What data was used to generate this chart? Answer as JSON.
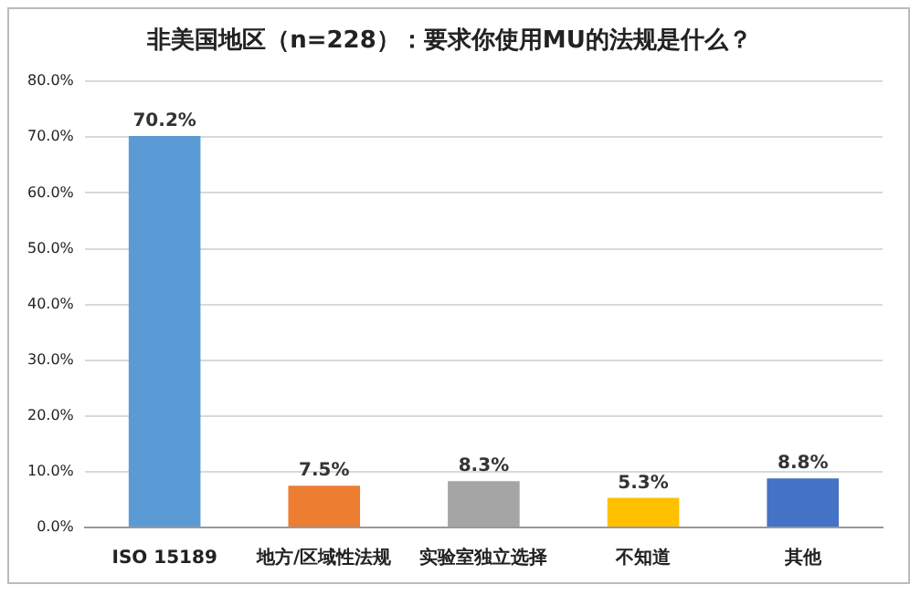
{
  "chart_data": {
    "type": "bar",
    "title": "非美国地区（n=228）：要求你使用MU的法规是什么？",
    "categories": [
      "ISO 15189",
      "地方/区域性法规",
      "实验室独立选择",
      "不知道",
      "其他"
    ],
    "values": [
      70.2,
      7.5,
      8.3,
      5.3,
      8.8
    ],
    "value_labels": [
      "70.2%",
      "7.5%",
      "8.3%",
      "5.3%",
      "8.8%"
    ],
    "colors": [
      "#5b9bd5",
      "#ed7d31",
      "#a5a5a5",
      "#ffc000",
      "#4472c4"
    ],
    "ylim": [
      0,
      80
    ],
    "yticks": [
      {
        "value": 0,
        "label": "0.0%"
      },
      {
        "value": 10,
        "label": "10.0%"
      },
      {
        "value": 20,
        "label": "20.0%"
      },
      {
        "value": 30,
        "label": "30.0%"
      },
      {
        "value": 40,
        "label": "40.0%"
      },
      {
        "value": 50,
        "label": "50.0%"
      },
      {
        "value": 60,
        "label": "60.0%"
      },
      {
        "value": 70,
        "label": "70.0%"
      },
      {
        "value": 80,
        "label": "80.0%"
      }
    ],
    "grid": "y",
    "legend": false
  }
}
